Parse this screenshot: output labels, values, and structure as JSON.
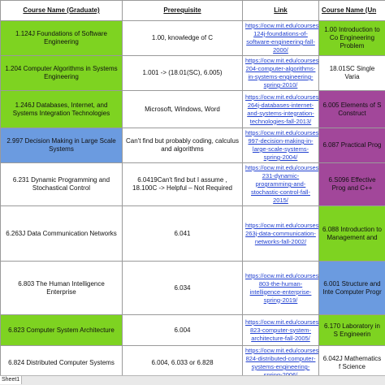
{
  "headers": {
    "graduate": "Course Name (Graduate)",
    "prerequisite": "Prerequisite",
    "link": "Link",
    "undergraduate": "Course Name (Un"
  },
  "colors": {
    "green": "#7ed321",
    "blue": "#6b9be0",
    "purple": "#a2479a",
    "white": "#ffffff",
    "link_text": "#1f3fd0",
    "grid_border": "#9a9a9a"
  },
  "rows": [
    {
      "graduate": "1.124J Foundations of Software Engineering",
      "graduate_color": "#7ed321",
      "prerequisite": "1.00, knowledge of C",
      "link": "https://ocw.mit.edu/courses/1-124j-foundations-of-software-engineering-fall-2000/",
      "undergraduate": "1.00 Introduction to Co Engineering Problem",
      "undergraduate_color": "#7ed321"
    },
    {
      "graduate": "1.204 Computer Algorithms in Systems Engineering",
      "graduate_color": "#7ed321",
      "prerequisite": "1.001 -> (18.01(SC), 6.005)",
      "link": "https://ocw.mit.edu/courses/1-204-computer-algorithms-in-systems-engineering-spring-2010/",
      "undergraduate": "18.01SC Single Varia",
      "undergraduate_color": "#ffffff"
    },
    {
      "graduate": "1.246J Databases, Internet, and Systems Integration Technologies",
      "graduate_color": "#7ed321",
      "prerequisite": "Microsoft, Windows, Word",
      "link": "https://ocw.mit.edu/courses/1-264j-databases-internet-and-systems-integration-technologies-fall-2013/",
      "undergraduate": "6.005 Elements of S Construct",
      "undergraduate_color": "#a2479a"
    },
    {
      "graduate": "2.997 Decision Making in Large Scale Systems",
      "graduate_color": "#6b9be0",
      "prerequisite": "Can't find but probably coding, calculus and algorithms",
      "link": "https://ocw.mit.edu/courses/2-997-decision-making-in-large-scale-systems-spring-2004/",
      "undergraduate": "6.087 Practical Prog",
      "undergraduate_color": "#a2479a"
    },
    {
      "graduate": "6.231 Dynamic Programming and Stochastical Control",
      "graduate_color": "#ffffff",
      "prerequisite": "6.0419Can't find but I assume , 18.100C -> Helpful – Not Required",
      "link": "https://ocw.mit.edu/courses/6-231-dynamic-programming-and-stochastic-control-fall-2015/",
      "undergraduate": "6.S096 Effective Prog and C++",
      "undergraduate_color": "#a2479a"
    },
    {
      "graduate": "6.263J Data Communication Networks",
      "graduate_color": "#ffffff",
      "prerequisite": "6.041",
      "link": "https://ocw.mit.edu/courses/6-263j-data-communication-networks-fall-2002/",
      "undergraduate": "6.088 Introduction to Management and",
      "undergraduate_color": "#7ed321"
    },
    {
      "graduate": "6.803 The Human Intelligence Enterprise",
      "graduate_color": "#ffffff",
      "prerequisite": "6.034",
      "link": "https://ocw.mit.edu/courses/6-803-the-human-intelligence-enterprise-spring-2019/",
      "undergraduate": "6.001 Structure and Inte Computer Progr",
      "undergraduate_color": "#6b9be0"
    },
    {
      "graduate": "6.823 Computer System Architecture",
      "graduate_color": "#7ed321",
      "prerequisite": "6.004",
      "link": "https://ocw.mit.edu/courses/6-823-computer-system-architecture-fall-2005/",
      "undergraduate": "6.170 Laboratory in S Engineerin",
      "undergraduate_color": "#7ed321"
    },
    {
      "graduate": "6.824 Distributed Computer Systems",
      "graduate_color": "#ffffff",
      "prerequisite": "6.004, 6.033 or 6.828",
      "link": "https://ocw.mit.edu/courses/6-824-distributed-computer-systems-engineering-spring-2006/",
      "undergraduate": "6.042J Mathematics f Science",
      "undergraduate_color": "#ffffff"
    }
  ],
  "sheet_tab": "Sheet1"
}
